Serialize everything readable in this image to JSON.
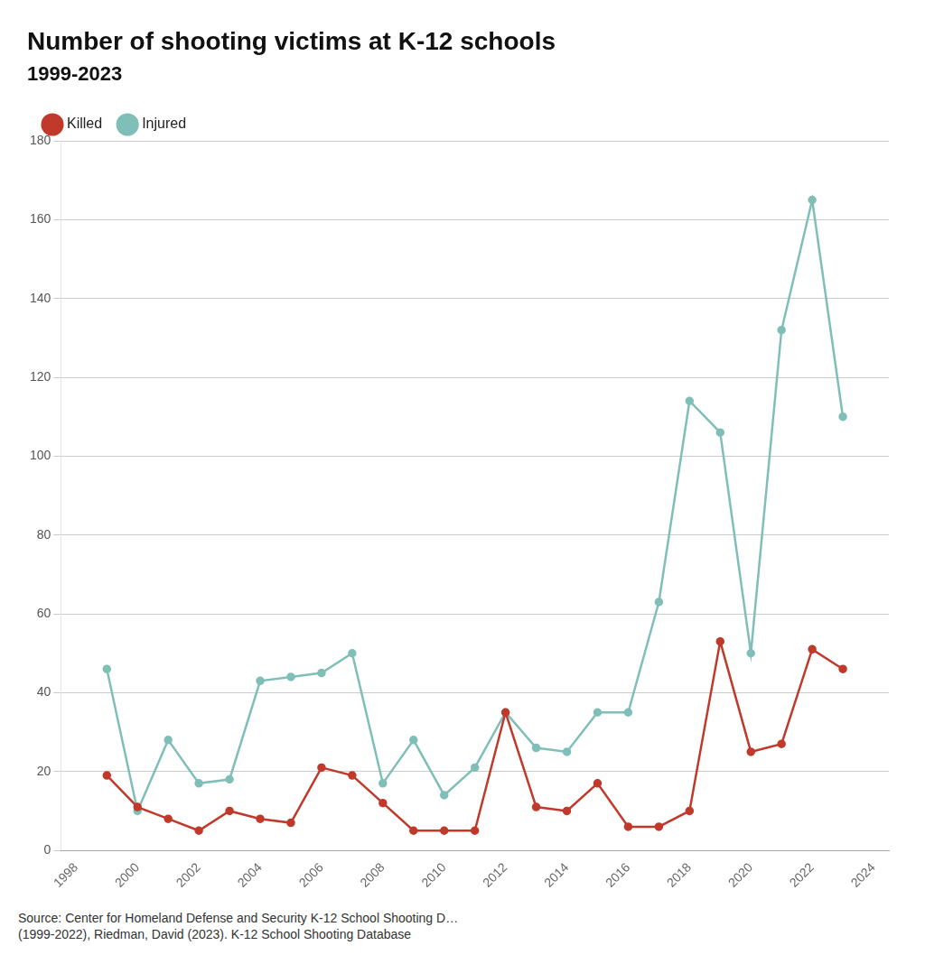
{
  "chart_data": {
    "type": "line",
    "title": "Number of shooting victims at K-12 schools",
    "subtitle": "1999-2023",
    "annotations": [
      "Source: Center for Homeland Defense and Security K-12 School Shooting D…\n(1999-2022), Riedman, David (2023). K-12 School Shooting Database"
    ],
    "x": [
      1999,
      2000,
      2001,
      2002,
      2003,
      2004,
      2005,
      2006,
      2007,
      2008,
      2009,
      2010,
      2011,
      2012,
      2013,
      2014,
      2015,
      2016,
      2017,
      2018,
      2019,
      2020,
      2021,
      2022,
      2023
    ],
    "series": [
      {
        "name": "Killed",
        "color": "#c0392b",
        "marker": "circle",
        "values": [
          19,
          11,
          8,
          5,
          10,
          8,
          7,
          21,
          19,
          12,
          5,
          5,
          5,
          35,
          11,
          10,
          17,
          6,
          6,
          10,
          53,
          25,
          27,
          51,
          46
        ]
      },
      {
        "name": "Injured",
        "color": "#7fbfb8",
        "marker": "circle",
        "values": [
          46,
          10,
          28,
          17,
          18,
          43,
          44,
          45,
          50,
          17,
          28,
          14,
          21,
          35,
          26,
          25,
          35,
          35,
          63,
          114,
          106,
          50,
          132,
          165,
          110
        ]
      }
    ],
    "xlim": [
      1997.5,
      2024.5
    ],
    "xticks": [
      1998,
      2000,
      2002,
      2004,
      2006,
      2008,
      2010,
      2012,
      2014,
      2016,
      2018,
      2020,
      2022,
      2024
    ],
    "ylim": [
      0,
      180
    ],
    "yticks": [
      0,
      20,
      40,
      60,
      80,
      100,
      120,
      140,
      160,
      180
    ],
    "grid": "y",
    "legend": "upper left"
  }
}
